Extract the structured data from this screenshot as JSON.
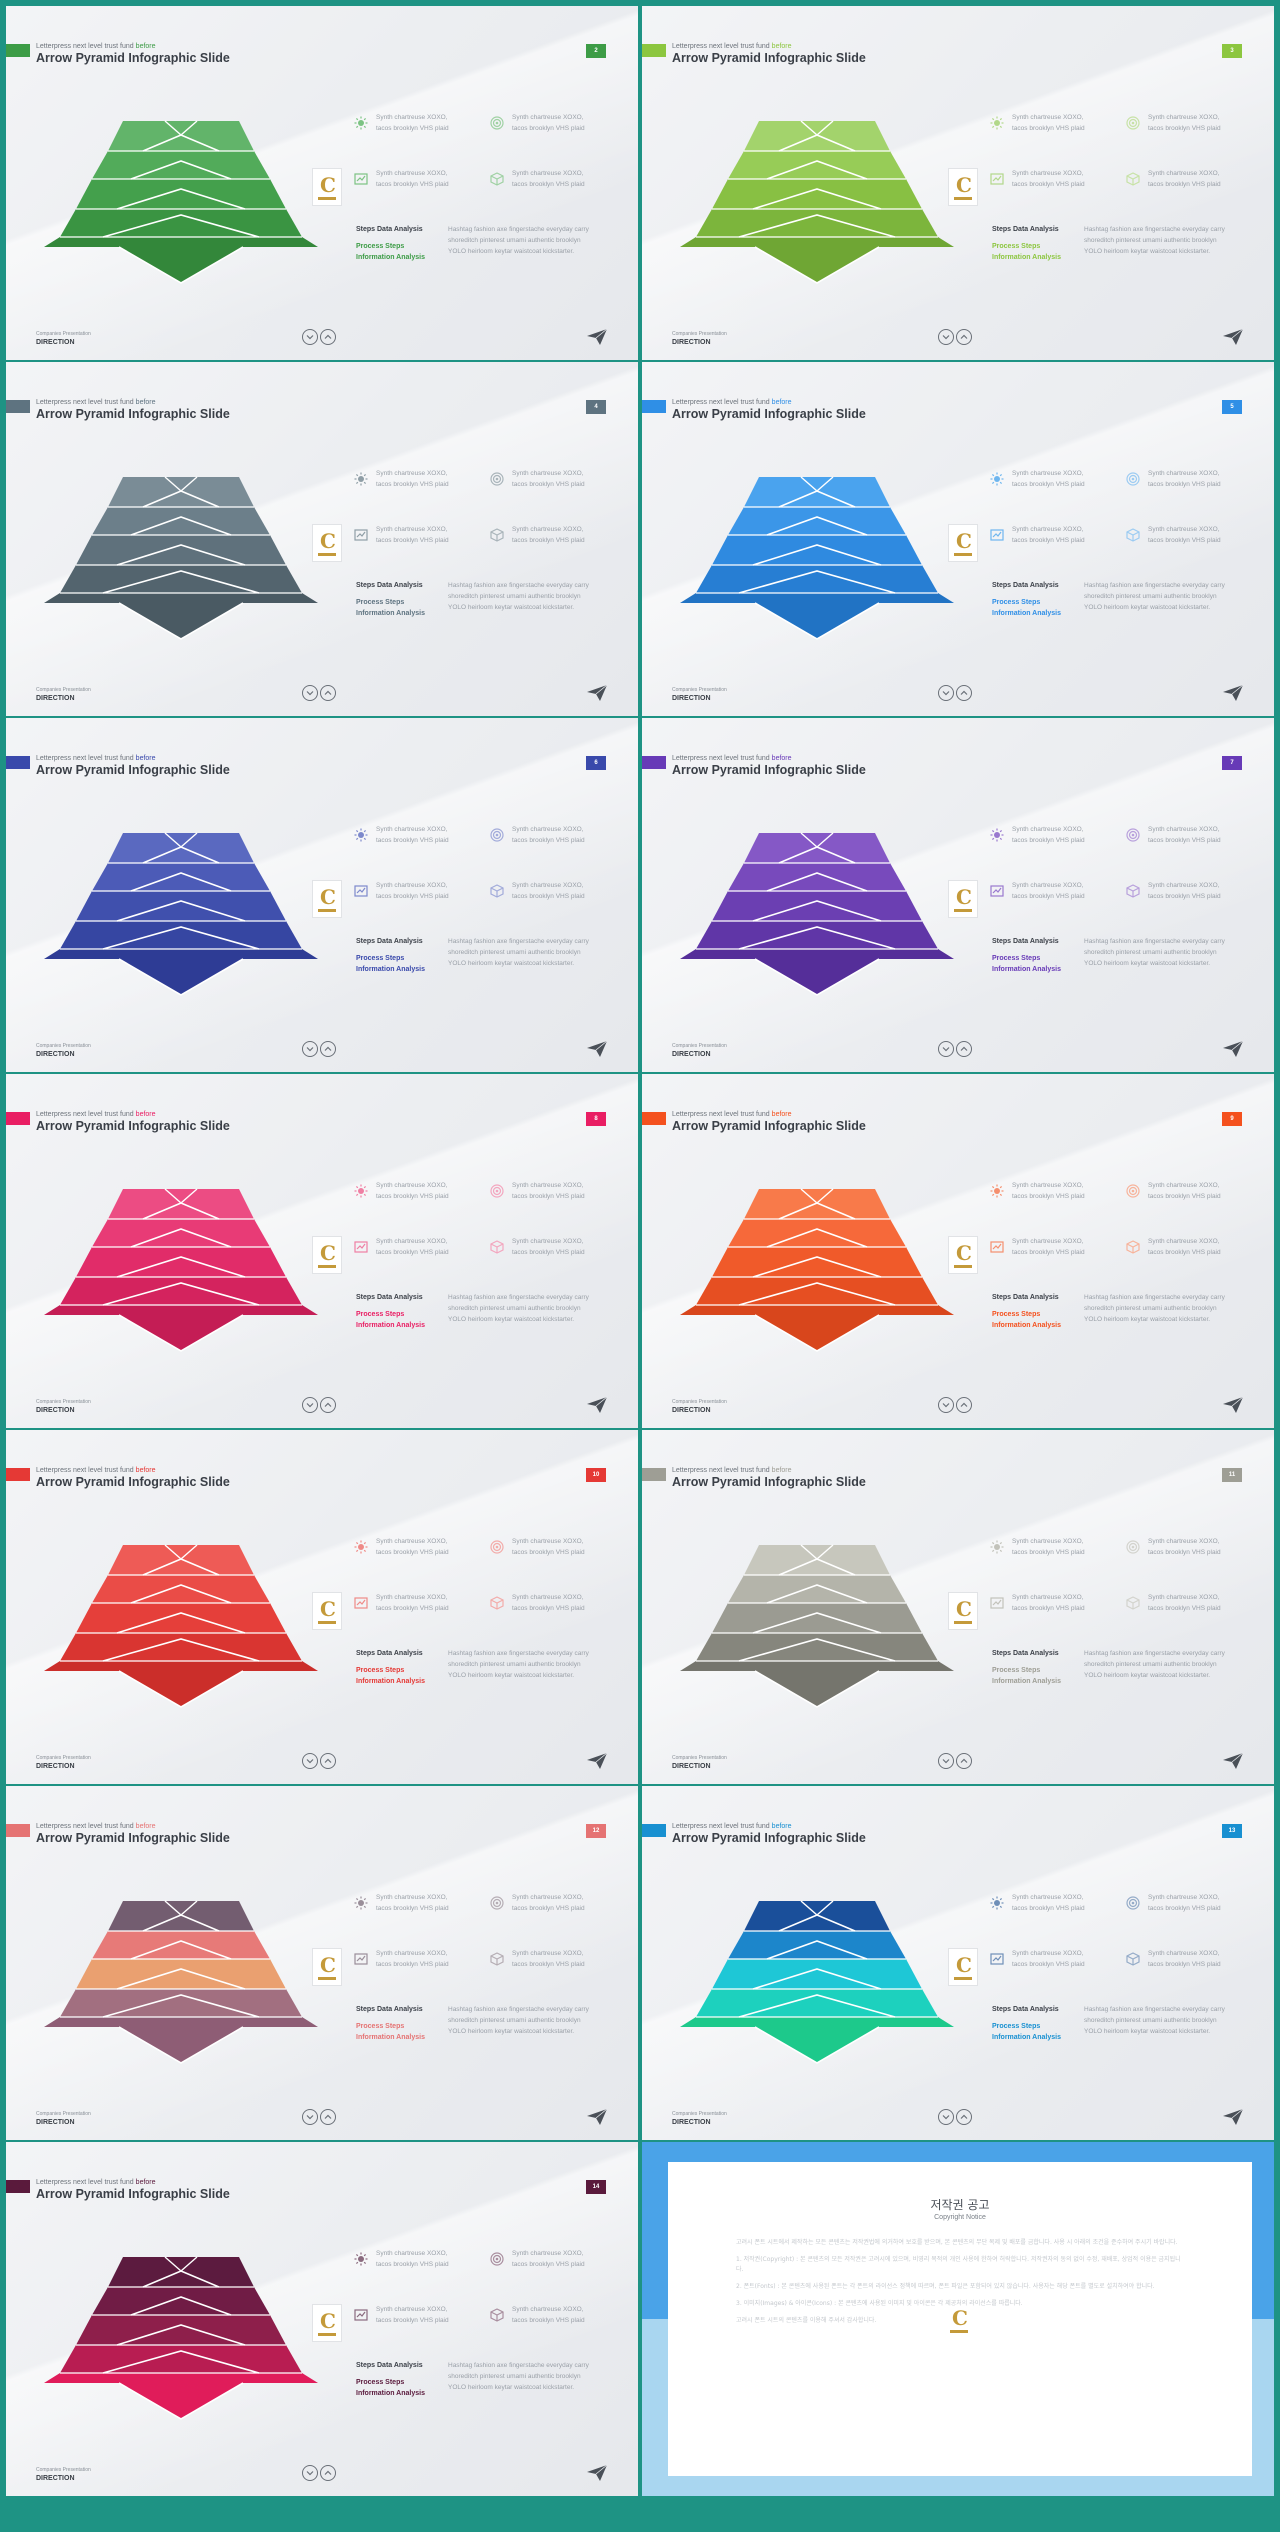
{
  "common": {
    "subtitle": "Letterpress next level trust fund",
    "subtitle_highlight": "before",
    "title": "Arrow Pyramid Infographic Slide",
    "feature_text": "Synth chartreuse XOXO,\ntacos brooklyn VHS plaid",
    "steps_label": "Steps Data Analysis",
    "process_label": "Process Steps",
    "info_label": "Information Analysis",
    "description": "Hashtag fashion axe fingerstache everyday carry\nshoreditch pinterest umami authentic brooklyn\nYOLO heirloom keytar waistcoat kickstarter.",
    "footer_small": "Companies Presentation",
    "footer_big": "DIRECTION",
    "feature_icons": [
      "sun-icon",
      "target-icon",
      "chart-icon",
      "cube-icon"
    ]
  },
  "slides": [
    {
      "page": "2",
      "accent": "#3d9c46",
      "tiers": [
        "#62b46a",
        "#52ab5a",
        "#44a04c",
        "#3a9442",
        "#33873a"
      ],
      "icon_colors": [
        "#7cc383",
        "#9fd1a3"
      ]
    },
    {
      "page": "3",
      "accent": "#8cc63f",
      "tiers": [
        "#a3d36c",
        "#97cc57",
        "#88c043",
        "#7cb53c",
        "#6fa634"
      ],
      "icon_colors": [
        "#b2d88a",
        "#c7e2a6"
      ]
    },
    {
      "page": "4",
      "accent": "#5e7380",
      "tiers": [
        "#7a8c96",
        "#6c7f8a",
        "#5f717c",
        "#53646e",
        "#4a5a63"
      ],
      "icon_colors": [
        "#8f9ea6",
        "#a9b4ba"
      ]
    },
    {
      "page": "5",
      "accent": "#2f8fe6",
      "tiers": [
        "#4aa3ee",
        "#3b96e8",
        "#2f8ae0",
        "#277ed3",
        "#2173c4"
      ],
      "icon_colors": [
        "#6fb6ef",
        "#9ccbf2"
      ]
    },
    {
      "page": "6",
      "accent": "#3949ab",
      "tiers": [
        "#5a69c0",
        "#4c5bb7",
        "#4050ad",
        "#3646a2",
        "#2e3c95"
      ],
      "icon_colors": [
        "#7d89cc",
        "#a2abda"
      ]
    },
    {
      "page": "7",
      "accent": "#673ab7",
      "tiers": [
        "#8558c6",
        "#784abc",
        "#6b3fb2",
        "#6036a7",
        "#552e99"
      ],
      "icon_colors": [
        "#9a79cf",
        "#b8a0dc"
      ]
    },
    {
      "page": "8",
      "accent": "#e91e63",
      "tiers": [
        "#ec4c83",
        "#e83b76",
        "#e12c69",
        "#d4235e",
        "#c41d55"
      ],
      "icon_colors": [
        "#ef7fa3",
        "#f3a6bf"
      ]
    },
    {
      "page": "9",
      "accent": "#f4511e",
      "tiers": [
        "#f87a4a",
        "#f6693a",
        "#f05a2a",
        "#e64f22",
        "#d8461c"
      ],
      "icon_colors": [
        "#f58f6e",
        "#f7b39b"
      ]
    },
    {
      "page": "10",
      "accent": "#e53935",
      "tiers": [
        "#ee5b56",
        "#ea4c47",
        "#e53f3a",
        "#d93531",
        "#cb2e2a"
      ],
      "icon_colors": [
        "#ef8a87",
        "#f3aba9"
      ]
    },
    {
      "page": "11",
      "accent": "#9e9e95",
      "tiers": [
        "#c7c7bd",
        "#b4b4aa",
        "#9b9b92",
        "#86867d",
        "#75756d"
      ],
      "icon_colors": [
        "#c2c2ba",
        "#d3d3cd"
      ]
    },
    {
      "page": "12",
      "accent": "#e57373",
      "tiers": [
        "#735d70",
        "#e77a78",
        "#eaa070",
        "#a26f80",
        "#8e5d75"
      ],
      "icon_colors": [
        "#9a8e99",
        "#b5adb4"
      ]
    },
    {
      "page": "13",
      "accent": "#1890d1",
      "tiers": [
        "#1a4f9a",
        "#1c86cb",
        "#1ec7d6",
        "#1dd1be",
        "#1dc98b"
      ],
      "icon_colors": [
        "#6f8fb8",
        "#94abc8"
      ]
    },
    {
      "page": "14",
      "accent": "#5a1a3c",
      "tiers": [
        "#5c1b3f",
        "#701c45",
        "#8e1f4b",
        "#b81d52",
        "#e01c5a"
      ],
      "icon_colors": [
        "#8a6a7e",
        "#a98e9f"
      ]
    }
  ],
  "notice": {
    "title": "저작권 공고",
    "subtitle": "Copyright Notice",
    "paragraphs": [
      "고려시 폰트 시트에서 제작하는 모든 콘텐츠는 저작권법에 의거하여 보호를 받으며, 본 콘텐츠의 무단 복제 및 배포를 금합니다. 사용 시 아래의 조건을 준수하여 주시기 바랍니다.",
      "1. 저작권(Copyright) : 본 콘텐츠의 모든 저작권은 고려시에 있으며, 비영리 목적의 개인 사용에 한하여 허락합니다. 저작권자의 동의 없이 수정, 재배포, 상업적 이용은 금지됩니다.",
      "2. 폰트(Fonts) : 본 콘텐츠에 사용된 폰트는 각 폰트의 라이선스 정책에 따르며, 폰트 파일은 포함되어 있지 않습니다. 사용자는 해당 폰트를 별도로 설치하여야 합니다.",
      "3. 이미지(Images) & 아이콘(Icons) : 본 콘텐츠에 사용된 이미지 및 아이콘은 각 제공처의 라이선스를 따릅니다.",
      "고려시 폰트 시트의 콘텐츠를 이용해 주셔서 감사합니다."
    ]
  }
}
